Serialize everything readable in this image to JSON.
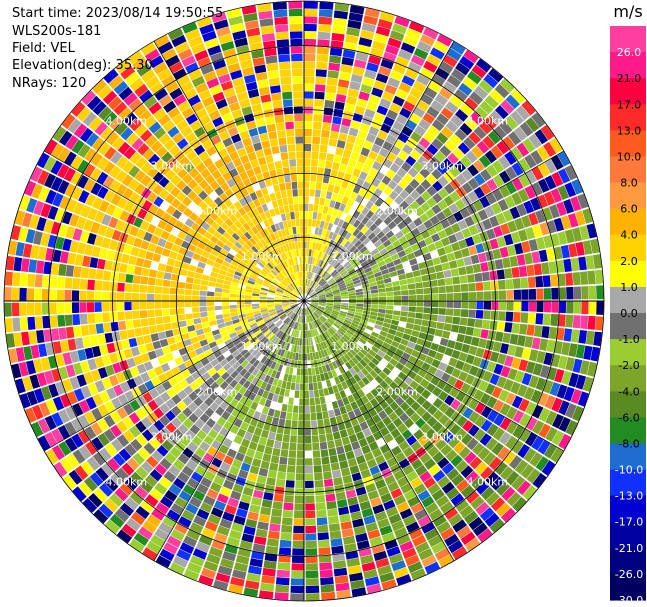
{
  "header": {
    "start_time": "Start time: 2023/08/14 19:50:55",
    "instrument": "WLS200s-181",
    "field": "Field: VEL",
    "elevation": "Elevation(deg): 35.30",
    "nrays": "NRays: 120"
  },
  "chart_data": {
    "type": "heatmap",
    "projection": "polar-ppi",
    "field": "VEL",
    "nrays": 120,
    "range_rings_km": [
      1.0,
      2.0,
      3.0,
      4.0
    ],
    "range_ring_labels": [
      "1.00km",
      "2.00km",
      "3.00km",
      "4.00km"
    ],
    "max_range_km": 4.7,
    "crosshair": true,
    "colorbar": {
      "unit": "m/s",
      "tick_labels": [
        "26.0",
        "21.0",
        "17.0",
        "13.0",
        "10.0",
        "8.0",
        "6.0",
        "4.0",
        "2.0",
        "1.0",
        "0.0",
        "-1.0",
        "-2.0",
        "-4.0",
        "-6.0",
        "-8.0",
        "-10.0",
        "-13.0",
        "-17.0",
        "-21.0",
        "-26.0",
        "-30.0"
      ],
      "boundaries": [
        30,
        26,
        21,
        17,
        13,
        10,
        8,
        6,
        4,
        2,
        1,
        0,
        -1,
        -2,
        -4,
        -6,
        -8,
        -10,
        -13,
        -17,
        -21,
        -26,
        -30
      ],
      "colors": [
        "#ff3fa0",
        "#ff1a8a",
        "#ff0040",
        "#ff2a2a",
        "#ff5a1e",
        "#ff7a3a",
        "#ff9a40",
        "#ffb300",
        "#ffd200",
        "#ffff00",
        "#a8a8a8",
        "#707070",
        "#9acd32",
        "#7ca52a",
        "#5a8a22",
        "#228b22",
        "#1e6ed2",
        "#1030ff",
        "#0000d0",
        "#0000a0",
        "#000080",
        "#000060"
      ]
    },
    "pattern": {
      "inner_extent_km": 2.7,
      "positive_sector": "north-west (yellow/orange, 0 to +6 m/s)",
      "negative_sector": "south-east (olive/green, 0 to -6 m/s)",
      "outer_ring": "noisy, random colors across full scale"
    }
  }
}
